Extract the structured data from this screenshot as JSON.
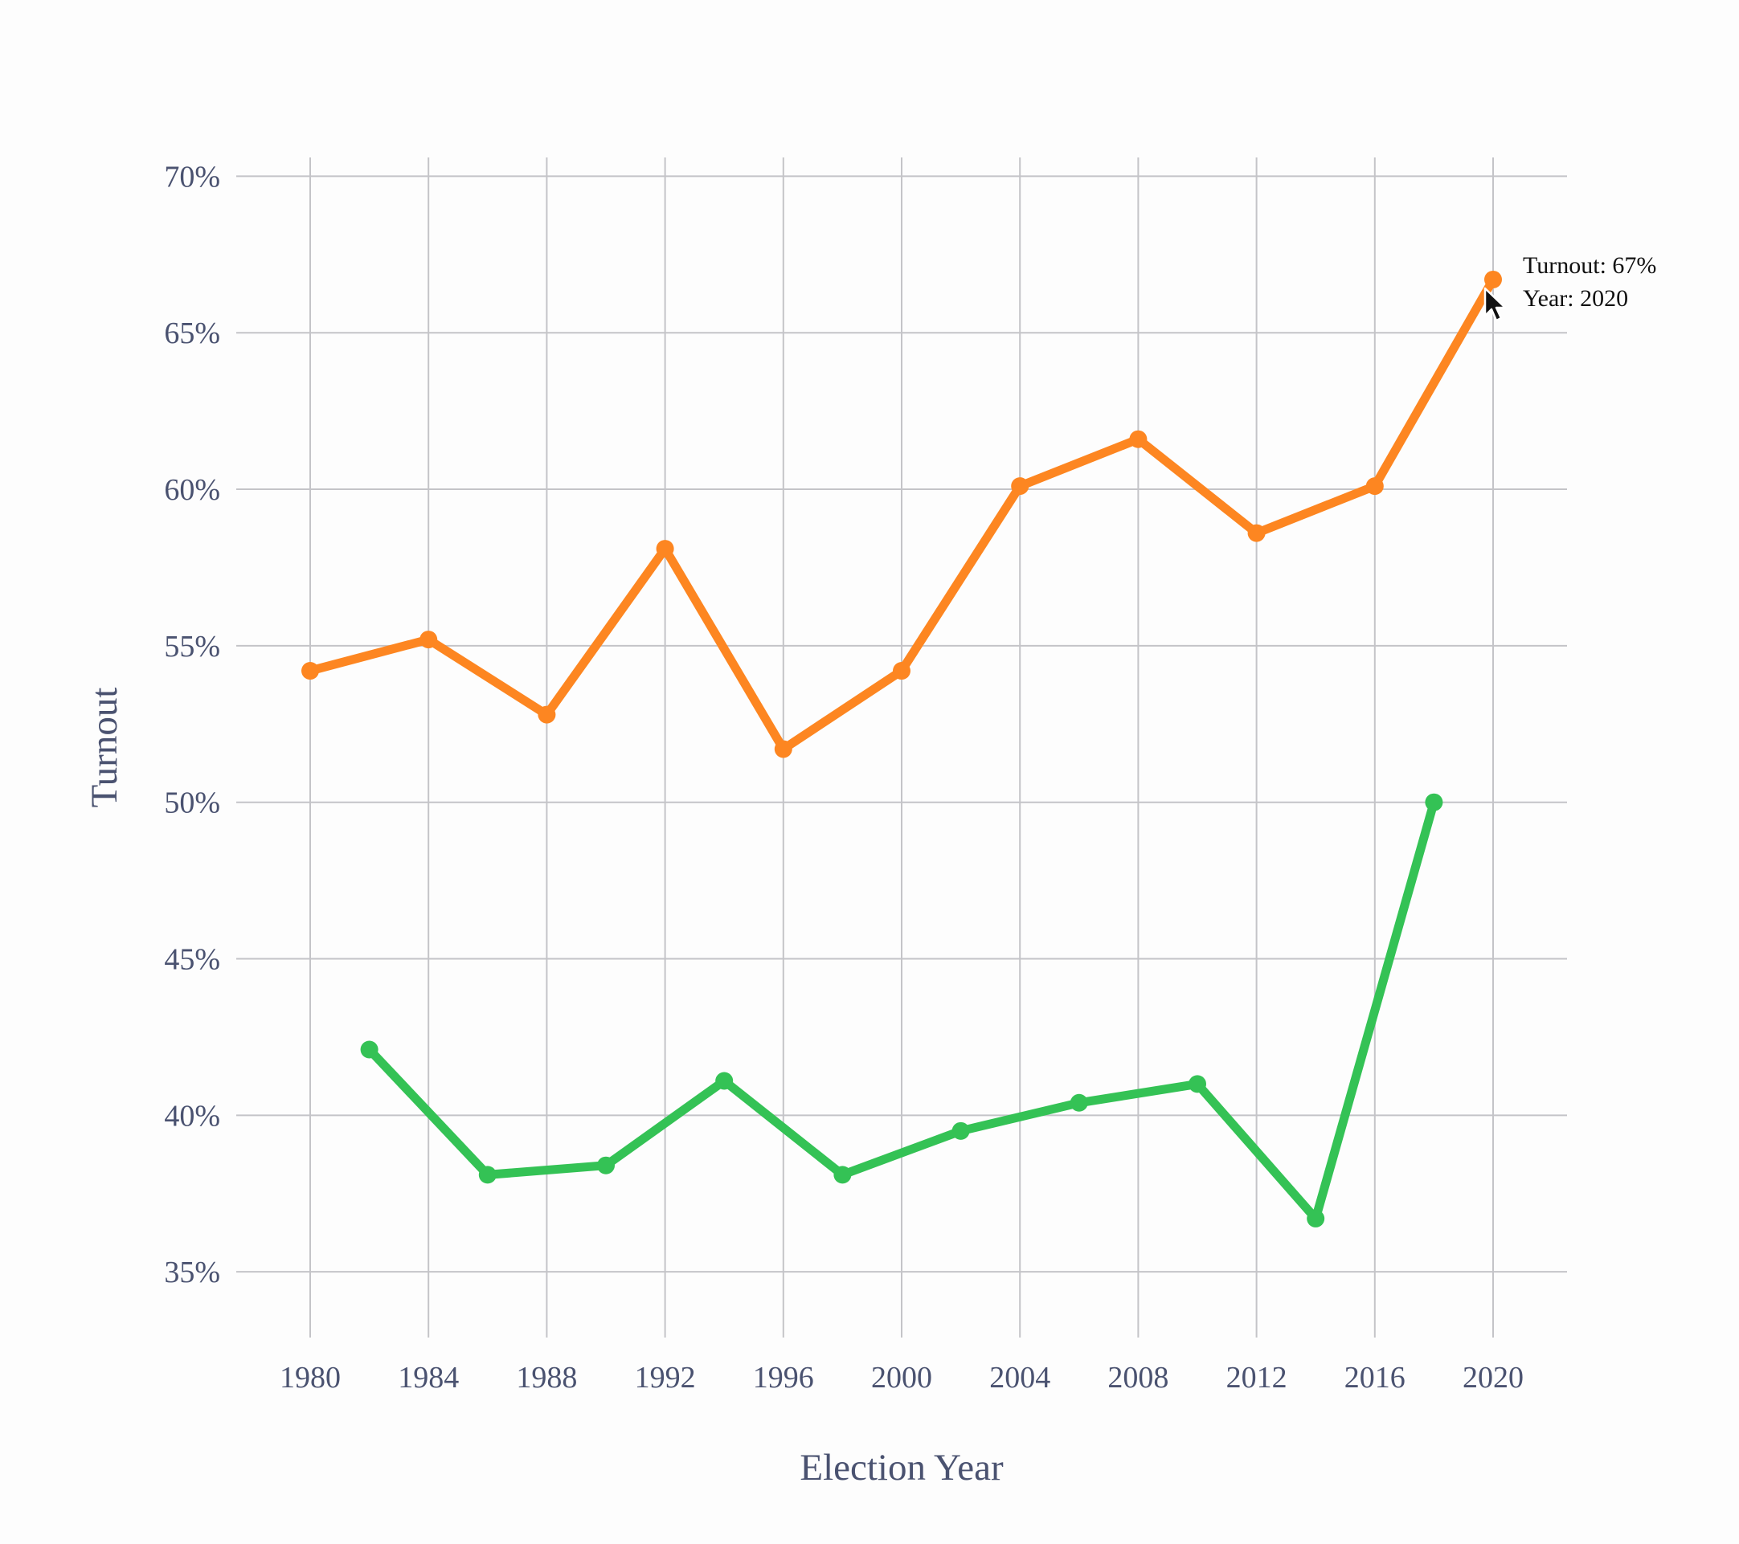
{
  "chart_data": {
    "type": "line",
    "xlabel": "Election Year",
    "ylabel": "Turnout",
    "xlim": [
      1977.5,
      2022.5
    ],
    "ylim": [
      32.9,
      70.6
    ],
    "x_ticks": [
      1980,
      1984,
      1988,
      1992,
      1996,
      2000,
      2004,
      2008,
      2012,
      2016,
      2020
    ],
    "y_ticks": [
      35,
      40,
      45,
      50,
      55,
      60,
      65,
      70
    ],
    "y_tick_labels": [
      "35%",
      "40%",
      "45%",
      "50%",
      "55%",
      "60%",
      "65%",
      "70%"
    ],
    "grid": true,
    "legend": "none",
    "series": [
      {
        "color": "#fd8621",
        "x": [
          1980,
          1984,
          1988,
          1992,
          1996,
          2000,
          2004,
          2008,
          2012,
          2016,
          2020
        ],
        "values": [
          54.2,
          55.2,
          52.8,
          58.1,
          51.7,
          54.2,
          60.1,
          61.6,
          58.6,
          60.1,
          66.7
        ]
      },
      {
        "color": "#34c255",
        "x": [
          1982,
          1986,
          1990,
          1994,
          1998,
          2002,
          2006,
          2010,
          2014,
          2018
        ],
        "values": [
          42.1,
          38.1,
          38.4,
          41.1,
          38.1,
          39.5,
          40.4,
          41.0,
          36.7,
          50.0
        ]
      }
    ],
    "tooltip": {
      "series_index": 0,
      "point_index": 10,
      "line1": "Turnout: 67%",
      "line2": "Year: 2020"
    },
    "grid_color": "#c4c4c8"
  }
}
